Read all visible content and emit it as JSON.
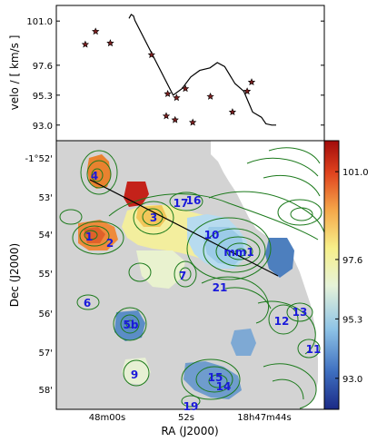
{
  "chart_data": [
    {
      "type": "line",
      "panel": "top",
      "ylabel": "velo / [ km/s ]",
      "yticks": [
        "101.0",
        "97.6",
        "95.3",
        "93.0"
      ],
      "ylim": [
        91.8,
        102.2
      ],
      "grid": false,
      "series": [
        {
          "style": "line",
          "x": [
            0.0,
            0.015,
            0.03,
            0.04,
            0.3,
            0.36,
            0.42,
            0.48,
            0.55,
            0.6,
            0.65,
            0.72,
            0.78,
            0.84,
            0.9,
            0.93,
            0.97,
            1.0
          ],
          "values": [
            101.2,
            101.5,
            101.4,
            101.05,
            95.3,
            95.8,
            96.7,
            97.2,
            97.4,
            97.8,
            97.5,
            96.2,
            95.6,
            94.0,
            93.6,
            93.1,
            93.0,
            93.0
          ]
        },
        {
          "style": "star",
          "x": [
            0.02,
            -0.05,
            0.12,
            0.4,
            0.51,
            0.63,
            0.57,
            0.8,
            0.95,
            0.5,
            0.56,
            0.68,
            1.08,
            1.05
          ],
          "values": [
            100.2,
            99.2,
            99.3,
            98.4,
            95.4,
            95.8,
            95.1,
            95.2,
            94.0,
            93.7,
            93.4,
            93.2,
            96.3,
            95.6
          ]
        }
      ]
    },
    {
      "type": "heatmap",
      "panel": "bottom",
      "xlabel": "RA (J2000)",
      "ylabel": "Dec (J2000)",
      "xticks": [
        "48m00s",
        "52s",
        "18h47m44s"
      ],
      "yticks": [
        "-1°52'",
        "53'",
        "54'",
        "55'",
        "56'",
        "57'",
        "58'"
      ],
      "colorbar": {
        "ticks": [
          "101.0",
          "97.6",
          "95.3",
          "93.0"
        ],
        "range": [
          91.8,
          102.2
        ],
        "colors": [
          "#1b2a86",
          "#3e6fc0",
          "#8fc4e6",
          "#e6f3d9",
          "#f7f08a",
          "#f5a84a",
          "#e0431e",
          "#a10b0b"
        ]
      },
      "labels": [
        "4",
        "16",
        "17",
        "3",
        "10",
        "mm1",
        "1",
        "2",
        "7",
        "21",
        "6",
        "5b",
        "12",
        "13",
        "11",
        "9",
        "15",
        "14",
        "19"
      ]
    }
  ]
}
